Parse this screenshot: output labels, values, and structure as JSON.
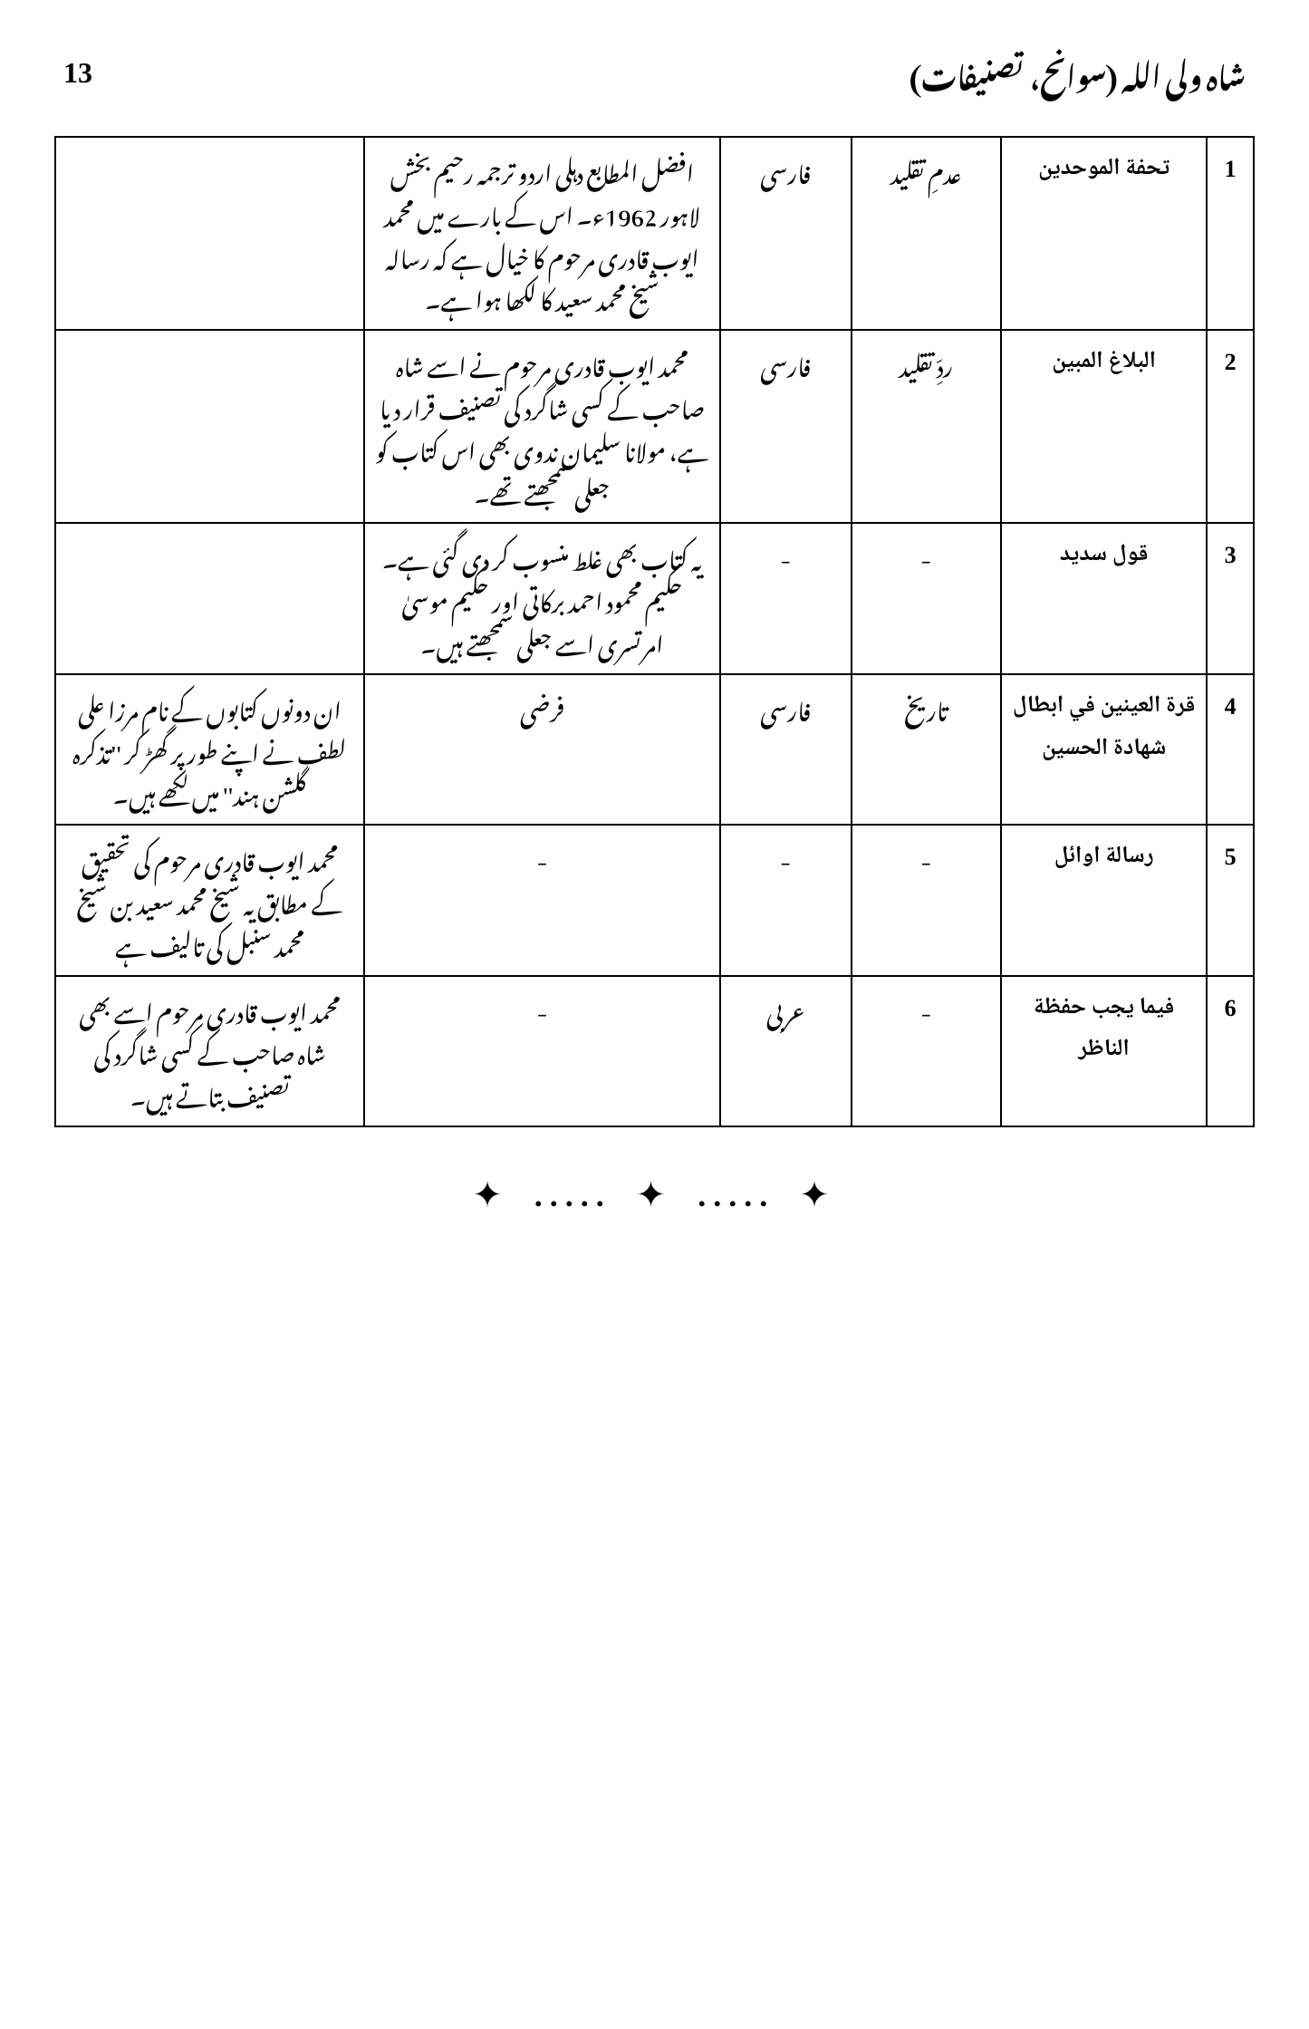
{
  "page_number": "13",
  "page_title": "شاہ ولی اللہ (سوانح، تصنیفات)",
  "table": {
    "rows": [
      {
        "num": "1",
        "title": "تحفة الموحدين",
        "subject": "عدمِ تقلید",
        "language": "فارسی",
        "notes1": "افضل المطابع دہلی اردو ترجمہ رحیم بخش لاہور 1962ء۔ اس کے بارے میں محمد ایوب قادری مرحوم کا خیال ہے کہ رسالہ شیخ محمد سعید کا لکھا ہوا ہے۔",
        "notes2": ""
      },
      {
        "num": "2",
        "title": "البلاغ المبين",
        "subject": "ردِّ تقلید",
        "language": "فارسی",
        "notes1": "محمد ایوب قادری مرحوم نے اسے شاہ صاحب کے کسی شاگرد کی تصنیف قرار دیا ہے، مولانا سلیمان ندوی بھی اس کتاب کو جعلی سمجھتے تھے۔",
        "notes2": ""
      },
      {
        "num": "3",
        "title": "قول سديد",
        "subject": "-",
        "language": "-",
        "notes1": "یہ کتاب بھی غلط منسوب کر دی گئی ہے۔ حکیم محمود احمد برکاتی اور حکیم موسیٰ امرتسری اسے جعلی سمجھتے ہیں۔",
        "notes2": ""
      },
      {
        "num": "4",
        "title": "قرة العينين في ابطال شهادة الحسين",
        "subject": "تاریخ",
        "language": "فارسی",
        "notes1": "فرضی",
        "notes2": "ان دونوں کتابوں کے نام مرزا علی لطف نے اپنے طور پر گھڑ کر ''تذکرہ گلشن ہند'' میں لکھے ہیں۔"
      },
      {
        "num": "5",
        "title": "رسالة اوائل",
        "subject": "-",
        "language": "-",
        "notes1": "-",
        "notes2": "محمد ایوب قادری مرحوم کی تحقیق کے مطابق یہ شیخ محمد سعید بن شیخ محمد سنبل کی تالیف ہے"
      },
      {
        "num": "6",
        "title": "فيما يجب حفظة الناظر",
        "subject": "-",
        "language": "عربی",
        "notes1": "-",
        "notes2": "محمد ایوب قادری مرحوم اسے بھی شاہ صاحب کے کسی شاگرد کی تصنیف بتاتے ہیں۔"
      }
    ]
  },
  "divider": {
    "star": "✦",
    "dots": "....."
  }
}
